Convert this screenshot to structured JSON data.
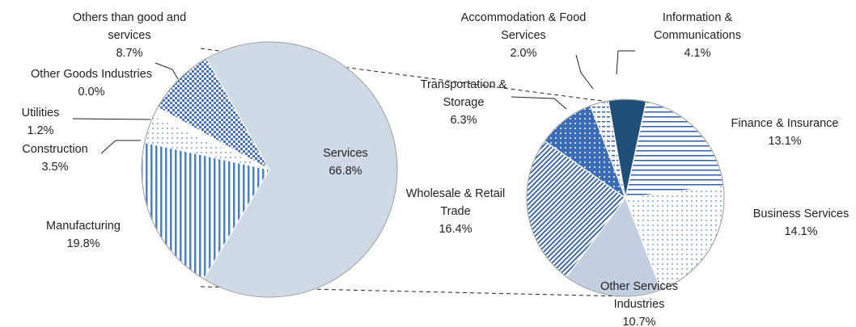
{
  "chart_data": [
    {
      "type": "pie",
      "categories": [
        "Services",
        "Manufacturing",
        "Construction",
        "Utilities",
        "Other Goods Industries",
        "Others than good and services"
      ],
      "values": [
        66.8,
        19.8,
        3.5,
        1.2,
        0.0,
        8.7
      ],
      "value_labels": [
        "66.8%",
        "19.8%",
        "3.5%",
        "1.2%",
        "0.0%",
        "8.7%"
      ],
      "colors": [
        "#d0d9e6",
        "#4f81bd",
        "#4f81bd",
        "#ffffff",
        "#4f81bd",
        "#4472c4"
      ]
    },
    {
      "type": "pie",
      "categories": [
        "Information & Communications",
        "Finance & Insurance",
        "Business Services",
        "Other Services Industries",
        "Wholesale & Retail Trade",
        "Transportation & Storage",
        "Accommodation & Food Services"
      ],
      "values": [
        4.1,
        13.1,
        14.1,
        10.7,
        16.4,
        6.3,
        2.0
      ],
      "value_labels": [
        "4.1%",
        "13.1%",
        "14.1%",
        "10.7%",
        "16.4%",
        "6.3%",
        "2.0%"
      ],
      "colors": [
        "#1f4e79",
        "#2e5fa8",
        "#4f81bd",
        "#c3cfe0",
        "#2e5fa8",
        "#3a6db5",
        "#2e5fa8"
      ]
    }
  ]
}
